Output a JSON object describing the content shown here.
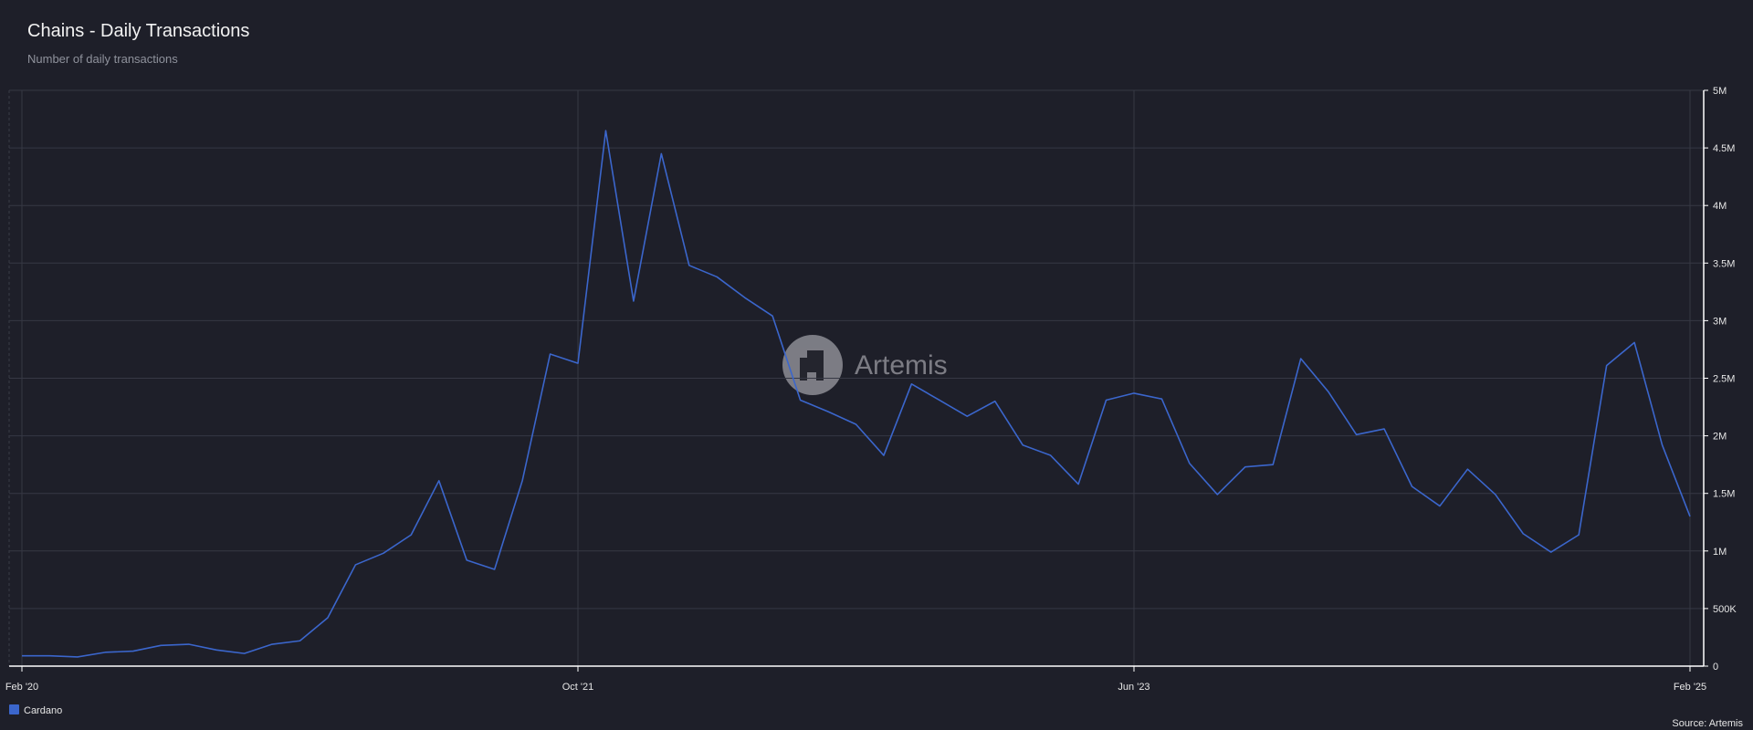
{
  "chart_data": {
    "type": "line",
    "title": "Chains - Daily Transactions",
    "subtitle": "Number of daily transactions",
    "source": "Source: Artemis",
    "watermark": "Artemis",
    "x": [
      "2020-02",
      "2020-03",
      "2020-04",
      "2020-05",
      "2020-06",
      "2020-07",
      "2020-08",
      "2020-09",
      "2020-10",
      "2020-11",
      "2020-12",
      "2021-01",
      "2021-02",
      "2021-03",
      "2021-04",
      "2021-05",
      "2021-06",
      "2021-07",
      "2021-08",
      "2021-09",
      "2021-10",
      "2021-11",
      "2021-12",
      "2022-01",
      "2022-02",
      "2022-03",
      "2022-04",
      "2022-05",
      "2022-06",
      "2022-07",
      "2022-08",
      "2022-09",
      "2022-10",
      "2022-11",
      "2022-12",
      "2023-01",
      "2023-02",
      "2023-03",
      "2023-04",
      "2023-05",
      "2023-06",
      "2023-07",
      "2023-08",
      "2023-09",
      "2023-10",
      "2023-11",
      "2023-12",
      "2024-01",
      "2024-02",
      "2024-03",
      "2024-04",
      "2024-05",
      "2024-06",
      "2024-07",
      "2024-08",
      "2024-09",
      "2024-10",
      "2024-11",
      "2024-12",
      "2025-01",
      "2025-02"
    ],
    "series": [
      {
        "name": "Cardano",
        "color": "#3b66cc",
        "values": [
          90000,
          90000,
          80000,
          120000,
          130000,
          180000,
          190000,
          140000,
          110000,
          190000,
          220000,
          420000,
          880000,
          980000,
          1140000,
          1610000,
          920000,
          840000,
          1610000,
          2710000,
          2630000,
          4650000,
          3170000,
          4450000,
          3480000,
          3380000,
          3200000,
          3040000,
          2310000,
          2210000,
          2100000,
          1830000,
          2450000,
          2310000,
          2170000,
          2300000,
          1920000,
          1830000,
          1580000,
          2310000,
          2370000,
          2320000,
          1760000,
          1490000,
          1730000,
          1750000,
          2670000,
          2380000,
          2010000,
          2060000,
          1560000,
          1390000,
          1710000,
          1490000,
          1150000,
          990000,
          1140000,
          2610000,
          2810000,
          1920000,
          1300000
        ]
      }
    ],
    "xlim": [
      "2020-02",
      "2025-02"
    ],
    "xticks": [
      {
        "value": "2020-02",
        "label": "Feb '20"
      },
      {
        "value": "2021-10",
        "label": "Oct '21"
      },
      {
        "value": "2023-06",
        "label": "Jun '23"
      },
      {
        "value": "2025-02",
        "label": "Feb '25"
      }
    ],
    "ylim": [
      0,
      5000000
    ],
    "yticks": [
      0,
      {
        "value": 500000,
        "label": "500K"
      },
      {
        "value": 1000000,
        "label": "1M"
      },
      {
        "value": 1500000,
        "label": "1.5M"
      },
      {
        "value": 2000000,
        "label": "2M"
      },
      {
        "value": 2500000,
        "label": "2.5M"
      },
      {
        "value": 3000000,
        "label": "3M"
      },
      {
        "value": 3500000,
        "label": "3.5M"
      },
      {
        "value": 4000000,
        "label": "4M"
      },
      {
        "value": 4500000,
        "label": "4.5M"
      },
      {
        "value": 5000000,
        "label": "5M"
      }
    ],
    "grid": true,
    "y_axis_side": "right",
    "legend": "bottom-left"
  }
}
